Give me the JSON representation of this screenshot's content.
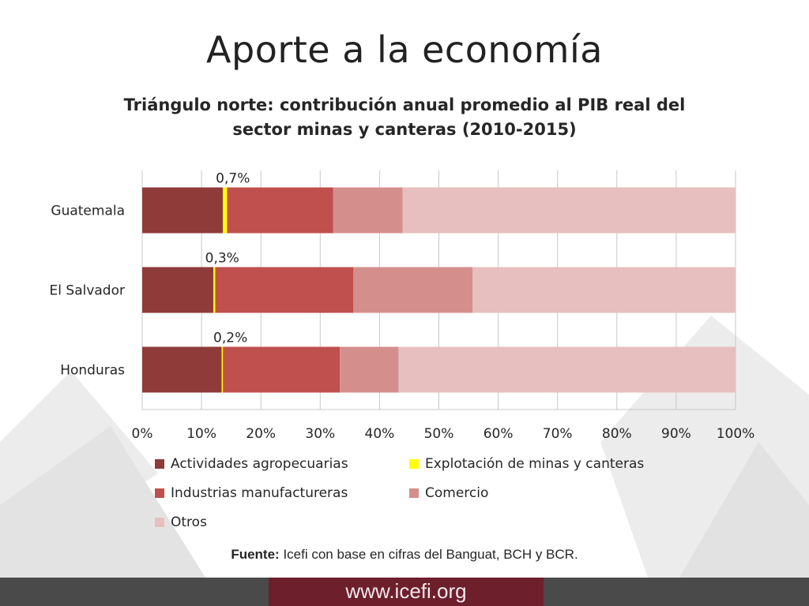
{
  "slide": {
    "title": "Aporte a la economía",
    "source_label": "Fuente:",
    "source_text": "Icefi con base en cifras del Banguat, BCH y BCR.",
    "footer_url": "www.icefi.org"
  },
  "colors": {
    "footer_dark": "#4a4a4a",
    "footer_accent": "#6d1f2b"
  },
  "chart_data": {
    "type": "bar",
    "orientation": "horizontal",
    "stacked": "percent",
    "title_lines": [
      "Triángulo norte: contribución anual promedio al PIB real del",
      "sector minas y canteras (2010-2015)"
    ],
    "categories": [
      "Guatemala",
      "El Salvador",
      "Honduras"
    ],
    "series": [
      {
        "name": "Actividades agropecuarias",
        "color": "#8e3b3a",
        "values": [
          13.6,
          12.0,
          13.4
        ]
      },
      {
        "name": "Explotación de minas y canteras",
        "color": "#ffff00",
        "values": [
          0.7,
          0.3,
          0.2
        ]
      },
      {
        "name": "Industrias manufactureras",
        "color": "#c0504d",
        "values": [
          17.9,
          23.3,
          19.7
        ]
      },
      {
        "name": "Comercio",
        "color": "#d48f8d",
        "values": [
          11.7,
          20.1,
          9.9
        ]
      },
      {
        "name": "Otros",
        "color": "#e6bfbe",
        "values": [
          56.1,
          44.3,
          56.8
        ]
      }
    ],
    "data_labels": [
      "0,7%",
      "0,3%",
      "0,2%"
    ],
    "x_ticks": [
      "0%",
      "10%",
      "20%",
      "30%",
      "40%",
      "50%",
      "60%",
      "70%",
      "80%",
      "90%",
      "100%"
    ],
    "xlim": [
      0,
      100
    ],
    "grid": true,
    "legend_position": "bottom"
  }
}
